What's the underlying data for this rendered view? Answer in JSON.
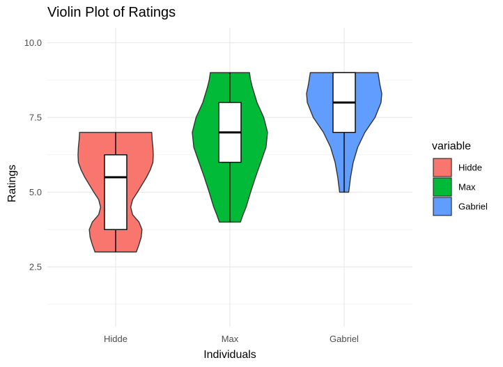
{
  "chart_data": {
    "type": "violin",
    "title": "Violin Plot of Ratings",
    "xlabel": "Individuals",
    "ylabel": "Ratings",
    "ylim": [
      0.5,
      10.5
    ],
    "yticks": [
      2.5,
      5.0,
      7.5,
      10.0
    ],
    "ytick_labels": [
      "2.5",
      "5.0",
      "7.5",
      "10.0"
    ],
    "grid": true,
    "legend": {
      "title": "variable",
      "placement": "right",
      "entries": [
        "Hidde",
        "Max",
        "Gabriel"
      ]
    },
    "categories": [
      "Hidde",
      "Max",
      "Gabriel"
    ],
    "colors": {
      "Hidde": "#F8766D",
      "Max": "#00BA38",
      "Gabriel": "#619CFF"
    },
    "series": [
      {
        "category": "Hidde",
        "min": 3.0,
        "q1": 3.75,
        "median": 5.5,
        "q3": 6.25,
        "max": 7.0,
        "density": [
          [
            3.0,
            0.55
          ],
          [
            3.25,
            0.62
          ],
          [
            3.5,
            0.68
          ],
          [
            3.75,
            0.7
          ],
          [
            4.0,
            0.62
          ],
          [
            4.25,
            0.45
          ],
          [
            4.5,
            0.4
          ],
          [
            4.75,
            0.45
          ],
          [
            5.0,
            0.58
          ],
          [
            5.25,
            0.7
          ],
          [
            5.5,
            0.82
          ],
          [
            5.75,
            0.92
          ],
          [
            6.0,
            0.99
          ],
          [
            6.25,
            1.0
          ],
          [
            6.5,
            0.99
          ],
          [
            6.75,
            0.97
          ],
          [
            7.0,
            0.96
          ]
        ]
      },
      {
        "category": "Max",
        "min": 4.0,
        "q1": 6.0,
        "median": 7.0,
        "q3": 8.0,
        "max": 9.0,
        "density": [
          [
            4.0,
            0.28
          ],
          [
            4.25,
            0.35
          ],
          [
            4.5,
            0.43
          ],
          [
            5.0,
            0.55
          ],
          [
            5.5,
            0.68
          ],
          [
            6.0,
            0.82
          ],
          [
            6.5,
            0.96
          ],
          [
            7.0,
            1.0
          ],
          [
            7.5,
            0.9
          ],
          [
            8.0,
            0.72
          ],
          [
            8.5,
            0.6
          ],
          [
            8.75,
            0.55
          ],
          [
            9.0,
            0.52
          ]
        ]
      },
      {
        "category": "Gabriel",
        "min": 5.0,
        "q1": 7.0,
        "median": 8.0,
        "q3": 9.0,
        "max": 9.0,
        "density": [
          [
            5.0,
            0.12
          ],
          [
            5.5,
            0.17
          ],
          [
            6.0,
            0.24
          ],
          [
            6.5,
            0.36
          ],
          [
            7.0,
            0.55
          ],
          [
            7.5,
            0.82
          ],
          [
            8.0,
            0.98
          ],
          [
            8.3,
            1.0
          ],
          [
            8.6,
            0.95
          ],
          [
            9.0,
            0.9
          ]
        ]
      }
    ]
  }
}
